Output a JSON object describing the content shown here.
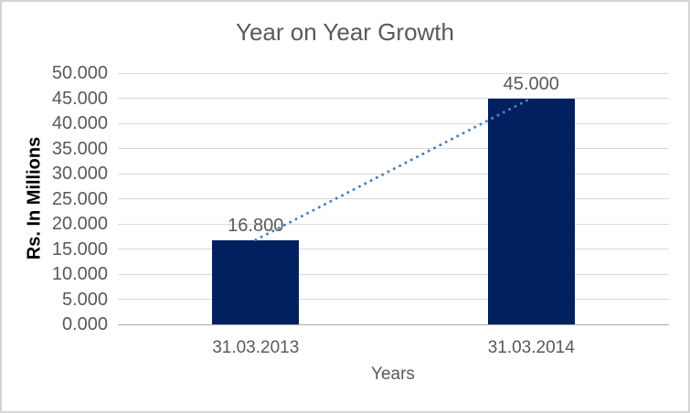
{
  "chart_data": {
    "type": "bar",
    "title": "Year on Year Growth",
    "xlabel": "Years",
    "ylabel": "Rs. In Millions",
    "categories": [
      "31.03.2013",
      "31.03.2014"
    ],
    "values": [
      16.8,
      45
    ],
    "data_labels": [
      "16.800",
      "45.000"
    ],
    "ylim": [
      0,
      50
    ],
    "ytick_step": 5,
    "ytick_labels": [
      "0.000",
      "5.000",
      "10.000",
      "15.000",
      "20.000",
      "25.000",
      "30.000",
      "35.000",
      "40.000",
      "45.000",
      "50.000"
    ],
    "grid": true,
    "legend": "none",
    "trendline": {
      "type": "linear",
      "style": "dotted",
      "from_category_index": 0,
      "to_category_index": 1
    },
    "colors": {
      "bar": "#002060",
      "trendline": "#4E81C2",
      "gridline": "#D9D9D9",
      "axis_line": "#ABABAB",
      "text": "#595959",
      "axis_title_text": "#000000",
      "border": "#D4D4D4",
      "background": "#FFFFFF"
    }
  }
}
